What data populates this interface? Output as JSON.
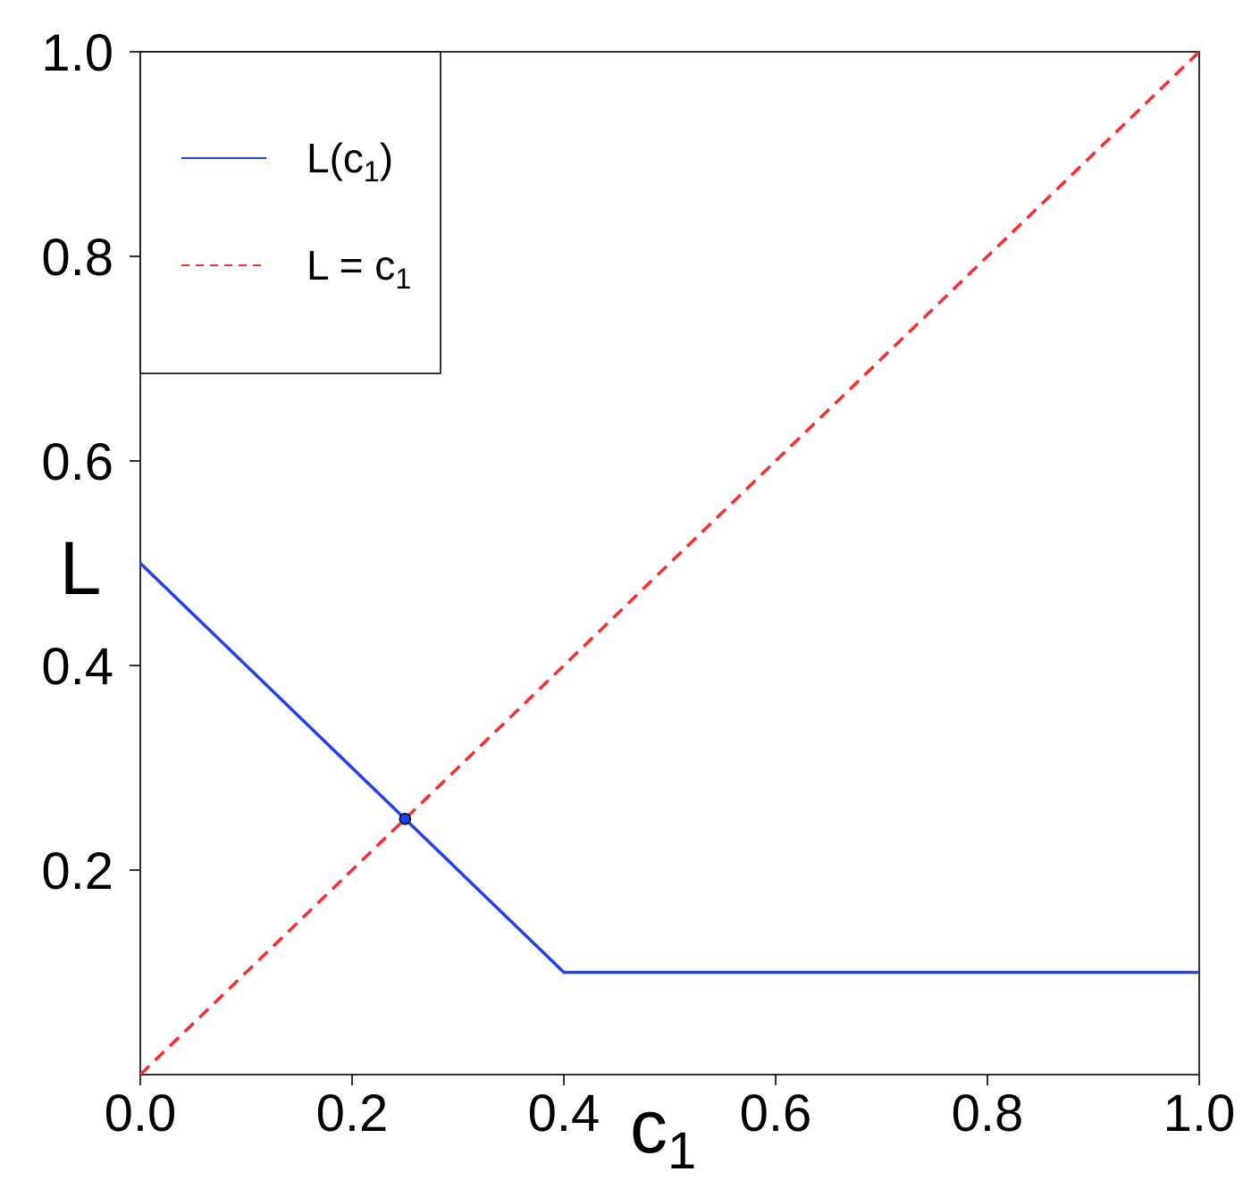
{
  "chart_data": {
    "type": "line",
    "xlabel": "c",
    "xlabel_sub": "1",
    "ylabel": "L",
    "xlim": [
      0,
      1
    ],
    "ylim": [
      0,
      1
    ],
    "xticks": [
      0,
      0.2,
      0.4,
      0.6,
      0.8,
      1.0
    ],
    "yticks": [
      0.2,
      0.4,
      0.6,
      0.8,
      1.0
    ],
    "xtick_labels": [
      "0.0",
      "0.2",
      "0.4",
      "0.6",
      "0.8",
      "1.0"
    ],
    "ytick_labels": [
      "0.2",
      "0.4",
      "0.6",
      "0.8",
      "1.0"
    ],
    "grid": false,
    "legend_position": "top-left",
    "series": [
      {
        "name": "L(c1)",
        "legend_main": "L(c",
        "legend_sub": "1",
        "legend_tail": ")",
        "color": "#1f3fff",
        "style": "solid",
        "x": [
          0,
          0.4,
          1.0
        ],
        "y": [
          0.5,
          0.1,
          0.1
        ]
      },
      {
        "name": "L = c1",
        "legend_main": "L = c",
        "legend_sub": "1",
        "legend_tail": "",
        "color": "#ff2a2a",
        "style": "dashed",
        "x": [
          0,
          1.0
        ],
        "y": [
          0,
          1.0
        ]
      }
    ],
    "points": [
      {
        "x": 0.25,
        "y": 0.25,
        "color": "#1f3fff"
      }
    ]
  }
}
